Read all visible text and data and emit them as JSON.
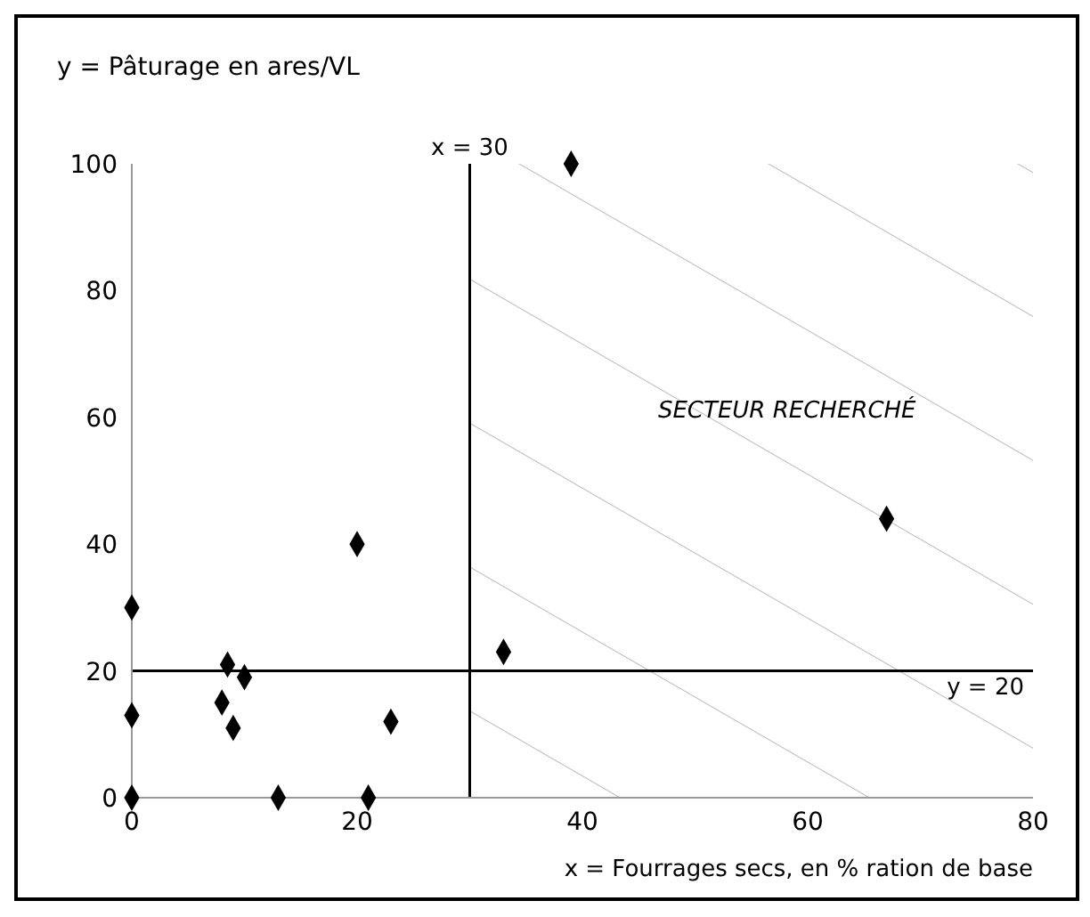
{
  "chart_data": {
    "type": "scatter",
    "xlabel": "x = Fourrages secs, en % ration de base",
    "ylabel": "y = Pâturage en ares/VL",
    "x": [
      0,
      0,
      0,
      8.5,
      10,
      8,
      9,
      13,
      20,
      21,
      23,
      33,
      39,
      67
    ],
    "values": [
      30,
      13,
      0,
      21,
      19,
      15,
      11,
      0,
      40,
      0,
      12,
      23,
      100,
      44
    ],
    "color": "#000000",
    "marker": "diamond",
    "grid": false,
    "xlim": [
      0,
      80
    ],
    "xticks": [
      0,
      20,
      40,
      60,
      80
    ],
    "ylim": [
      0,
      100
    ],
    "yticks": [
      0,
      20,
      40,
      60,
      80,
      100
    ],
    "ref_lines": [
      {
        "axis": "x",
        "value": 30,
        "label": "x = 30",
        "color": "#000000"
      },
      {
        "axis": "y",
        "value": 20,
        "label": "y = 20",
        "color": "#000000"
      }
    ],
    "bands": [
      {
        "axis": "x",
        "from": 30,
        "to": 80,
        "label": "SECTEUR RECHERCHÉ",
        "color": "#bbbbbb"
      }
    ]
  }
}
